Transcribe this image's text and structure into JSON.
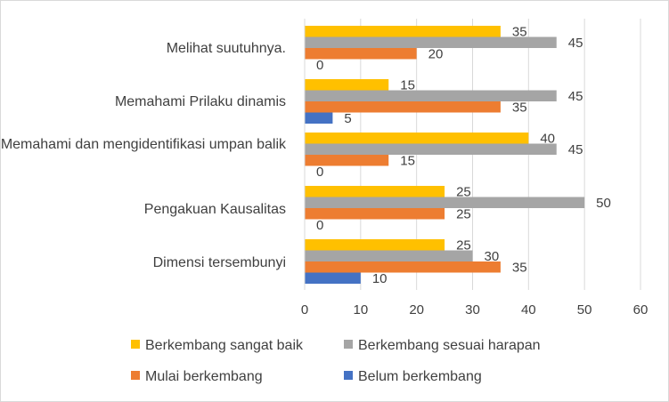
{
  "chart_data": {
    "type": "bar",
    "orientation": "horizontal",
    "categories": [
      "Melihat suutuhnya.",
      "Memahami Prilaku dinamis",
      "Memahami dan mengidentifikasi umpan balik",
      "Pengakuan Kausalitas",
      "Dimensi tersembunyi"
    ],
    "series": [
      {
        "name": "Berkembang sangat baik",
        "color": "#ffc000",
        "values": [
          35,
          15,
          40,
          25,
          25
        ]
      },
      {
        "name": "Berkembang sesuai harapan",
        "color": "#a5a5a5",
        "values": [
          45,
          45,
          45,
          50,
          30
        ]
      },
      {
        "name": "Mulai berkembang",
        "color": "#ed7d31",
        "values": [
          20,
          35,
          15,
          25,
          35
        ]
      },
      {
        "name": "Belum berkembang",
        "color": "#4472c4",
        "values": [
          0,
          5,
          0,
          0,
          10
        ]
      }
    ],
    "xlim": [
      0,
      60
    ],
    "xticks": [
      0,
      10,
      20,
      30,
      40,
      50,
      60
    ],
    "title": "",
    "xlabel": "",
    "ylabel": "",
    "grid": true,
    "legend_position": "bottom"
  }
}
